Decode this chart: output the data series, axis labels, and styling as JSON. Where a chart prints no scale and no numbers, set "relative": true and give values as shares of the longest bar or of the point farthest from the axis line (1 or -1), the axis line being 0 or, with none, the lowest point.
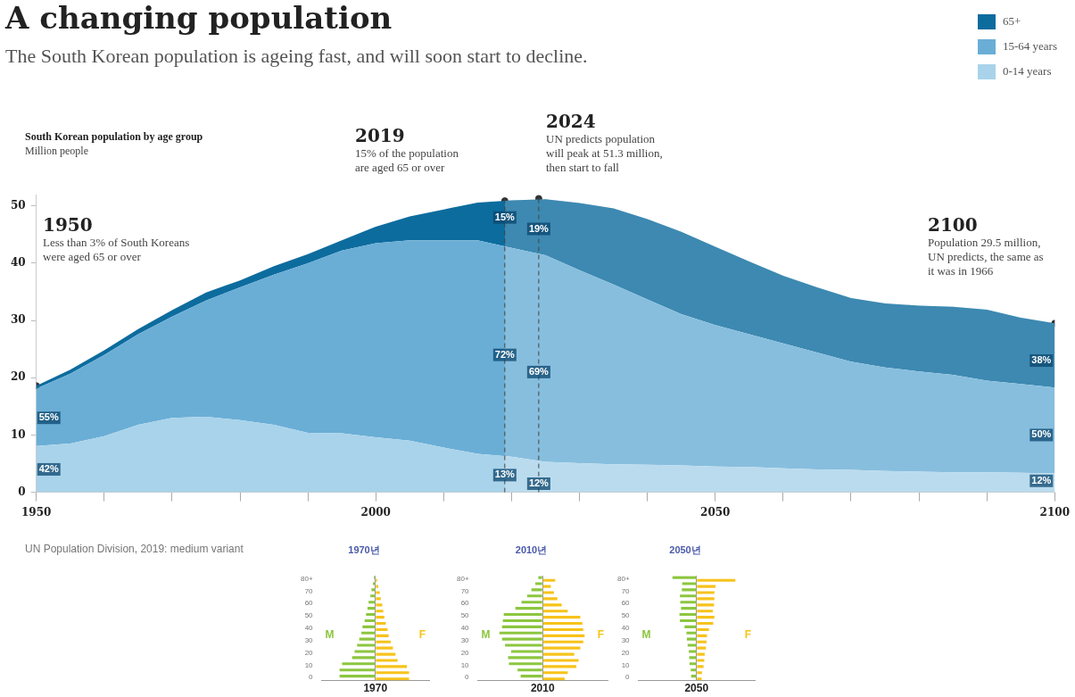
{
  "chart_data": [
    {
      "type": "area",
      "title": "A changing population",
      "subtitle": "The South Korean population is ageing fast, and will soon start to decline.",
      "ylabel": "Million people",
      "stacked": true,
      "legend": "top right",
      "x": [
        1950,
        1955,
        1960,
        1965,
        1970,
        1975,
        1980,
        1985,
        1990,
        1995,
        2000,
        2005,
        2010,
        2015,
        2020,
        2025,
        2030,
        2035,
        2040,
        2045,
        2050,
        2055,
        2060,
        2065,
        2070,
        2075,
        2080,
        2085,
        2090,
        2095,
        2100
      ],
      "series": [
        {
          "name": "0-14 years",
          "color": "#a9d3ea",
          "values": [
            8.1,
            8.5,
            9.8,
            11.8,
            13.0,
            13.2,
            12.6,
            11.8,
            10.4,
            10.3,
            9.6,
            9.0,
            7.8,
            6.7,
            6.2,
            5.3,
            5.1,
            4.9,
            4.8,
            4.7,
            4.5,
            4.4,
            4.2,
            4.0,
            3.9,
            3.7,
            3.6,
            3.5,
            3.5,
            3.4,
            3.3
          ]
        },
        {
          "name": "15-64 years",
          "color": "#6aaed6",
          "values": [
            10.0,
            12.2,
            14.2,
            15.8,
            17.7,
            20.3,
            23.2,
            26.2,
            29.6,
            31.9,
            33.9,
            35.0,
            36.2,
            37.3,
            36.5,
            36.1,
            33.7,
            31.4,
            28.9,
            26.4,
            24.7,
            23.2,
            21.8,
            20.4,
            18.9,
            18.1,
            17.5,
            17.0,
            16.0,
            15.5,
            15.0
          ]
        },
        {
          "name": "65+",
          "color": "#0d6c9e",
          "values": [
            0.5,
            0.7,
            0.8,
            0.9,
            1.1,
            1.4,
            1.2,
            1.5,
            1.6,
            1.8,
            2.9,
            4.2,
            5.4,
            6.6,
            8.3,
            9.8,
            11.7,
            13.3,
            14.0,
            14.4,
            13.7,
            12.7,
            11.8,
            11.4,
            11.1,
            11.2,
            11.5,
            11.9,
            12.4,
            11.6,
            11.2
          ]
        },
        {
          "type": "scatter",
          "color": "#333333",
          "marker": "circle",
          "x": [
            1950,
            2019,
            2024,
            2100
          ],
          "values": [
            18.6,
            50.9,
            51.3,
            29.5
          ]
        }
      ],
      "xlim": [
        1950,
        2100
      ],
      "xticks": [
        1950,
        {
          "value": 1960,
          "label": null
        },
        {
          "value": 1970,
          "label": null
        },
        {
          "value": 1980,
          "label": null
        },
        {
          "value": 1990,
          "label": null
        },
        2000,
        {
          "value": 2010,
          "label": null
        },
        {
          "value": 2020,
          "label": null
        },
        {
          "value": 2030,
          "label": null
        },
        {
          "value": 2040,
          "label": null
        },
        2050,
        {
          "value": 2060,
          "label": null
        },
        {
          "value": 2070,
          "label": null
        },
        {
          "value": 2080,
          "label": null
        },
        {
          "value": 2090,
          "label": null
        },
        2100
      ],
      "ylim": [
        0,
        52
      ],
      "yticks": [
        0,
        10,
        20,
        30,
        40,
        50
      ],
      "ref_lines": [
        {
          "axis": "x",
          "value": 2019,
          "color": "#444444",
          "line_style": "dashed"
        },
        {
          "axis": "x",
          "value": 2024,
          "color": "#444444",
          "line_style": "dashed"
        }
      ],
      "bands": [
        {
          "axis": "x",
          "from": 2019,
          "to": 2100,
          "color": "#ffffff"
        }
      ],
      "annotations": [
        "South Korean population by age group",
        "UN Population Division, 2019: medium variant",
        "1950\nLess than 3% of South Koreans\nwere aged 65 or over",
        "2019\n15% of the population\nare aged 65 or over",
        "2024\nUN predicts population\nwill peak at 51.3 million,\nthen start to fall",
        "2100\nPopulation 29.5 million,\nUN predicts, the same as\nit was in 1966",
        {
          "text": "55%",
          "x": 1950,
          "y": 13
        },
        {
          "text": "42%",
          "x": 1950,
          "y": 4
        },
        {
          "text": "15%",
          "x": 2019,
          "y": 48
        },
        {
          "text": "72%",
          "x": 2019,
          "y": 24
        },
        {
          "text": "13%",
          "x": 2019,
          "y": 3
        },
        {
          "text": "19%",
          "x": 2024,
          "y": 46
        },
        {
          "text": "69%",
          "x": 2024,
          "y": 21
        },
        {
          "text": "12%",
          "x": 2024,
          "y": 1.5
        },
        {
          "text": "38%",
          "x": 2100,
          "y": 23
        },
        {
          "text": "50%",
          "x": 2100,
          "y": 10
        },
        {
          "text": "12%",
          "x": 2100,
          "y": 2
        }
      ]
    },
    {
      "type": "bar",
      "orientation": "horizontal",
      "relative": true,
      "tick_labels": "y",
      "title": "1970년",
      "xlabel": "1970",
      "categories": [
        "80+",
        null,
        "70",
        null,
        "60",
        null,
        "50",
        null,
        "40",
        null,
        "30",
        null,
        "20",
        null,
        "10",
        null,
        "0"
      ],
      "series": [
        {
          "name": "M",
          "color": "#8cc63f",
          "values": [
            -0.04,
            -0.07,
            -0.11,
            -0.14,
            -0.19,
            -0.22,
            -0.26,
            -0.3,
            -0.36,
            -0.39,
            -0.45,
            -0.51,
            -0.58,
            -0.65,
            -0.93,
            -1,
            -1
          ]
        },
        {
          "name": "F",
          "color": "#f7c31a",
          "values": [
            0.05,
            0.08,
            0.12,
            0.15,
            0.19,
            0.22,
            0.25,
            0.29,
            0.34,
            0.37,
            0.43,
            0.49,
            0.56,
            0.62,
            0.88,
            0.94,
            0.94
          ]
        }
      ]
    },
    {
      "type": "bar",
      "orientation": "horizontal",
      "relative": true,
      "tick_labels": "y",
      "title": "2010년",
      "xlabel": "2010",
      "categories": [
        "80+",
        null,
        "70",
        null,
        "60",
        null,
        "50",
        null,
        "40",
        null,
        "30",
        null,
        "20",
        null,
        "10",
        null,
        "0"
      ],
      "series": [
        {
          "name": "M",
          "color": "#8cc63f",
          "values": [
            -0.1,
            -0.17,
            -0.26,
            -0.36,
            -0.49,
            -0.63,
            -0.9,
            -0.92,
            -0.94,
            -1,
            -0.94,
            -0.87,
            -0.73,
            -0.8,
            -0.78,
            -0.58,
            -0.51
          ]
        },
        {
          "name": "F",
          "color": "#f7c31a",
          "values": [
            0.29,
            0.19,
            0.26,
            0.34,
            0.44,
            0.58,
            0.87,
            0.92,
            0.94,
            0.97,
            0.94,
            0.87,
            0.73,
            0.83,
            0.78,
            0.58,
            0.51
          ]
        }
      ]
    },
    {
      "type": "bar",
      "orientation": "horizontal",
      "relative": true,
      "tick_labels": "y",
      "title": "2050년",
      "xlabel": "2050",
      "categories": [
        "80+",
        null,
        "70",
        null,
        "60",
        null,
        "50",
        null,
        "40",
        null,
        "30",
        null,
        "20",
        null,
        "10",
        null,
        "0"
      ],
      "series": [
        {
          "name": "M",
          "color": "#8cc63f",
          "values": [
            -0.62,
            -0.37,
            -0.38,
            -0.43,
            -0.42,
            -0.4,
            -0.44,
            -0.43,
            -0.31,
            -0.26,
            -0.25,
            -0.23,
            -0.2,
            -0.19,
            -0.18,
            -0.15,
            -0.14
          ]
        },
        {
          "name": "F",
          "color": "#f7c31a",
          "values": [
            1,
            0.49,
            0.46,
            0.46,
            0.45,
            0.42,
            0.46,
            0.43,
            0.32,
            0.27,
            0.26,
            0.24,
            0.21,
            0.2,
            0.18,
            0.14,
            0.13
          ]
        }
      ]
    }
  ]
}
